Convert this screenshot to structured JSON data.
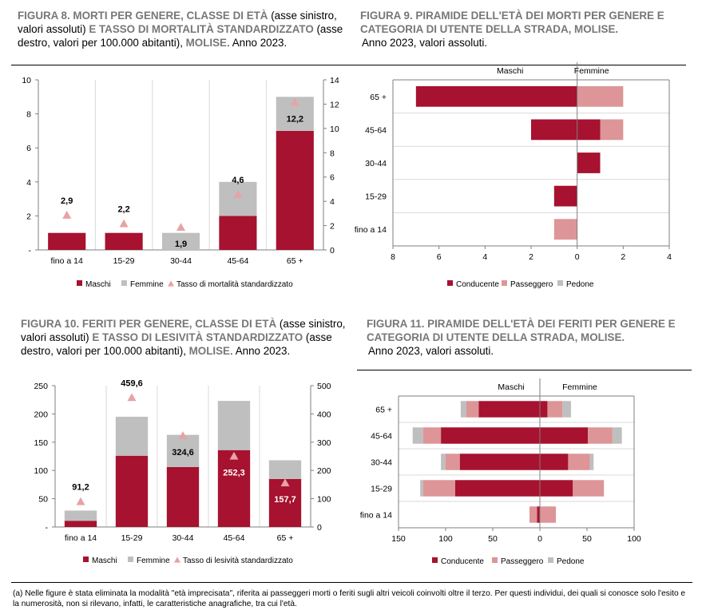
{
  "titles": {
    "f8": {
      "bold1": "FIGURA 8. MORTI PER GENERE, CLASSE DI ETÀ",
      "norm1": " (asse sinistro, valori assoluti)",
      "bold2": " E TASSO DI MORTALITÀ STANDARDIZZATO",
      "norm2": " (asse destro, valori per 100.000 abitanti), ",
      "bold3": "MOLISE",
      "norm3": ". Anno 2023."
    },
    "f9": {
      "bold": "FIGURA 9. PIRAMIDE DELL'ETÀ DEI MORTI PER GENERE E CATEGORIA DI UTENTE DELLA STRADA, MOLISE.",
      "sub": "Anno 2023, valori assoluti."
    },
    "f10": {
      "bold1": "FIGURA 10. FERITI PER GENERE, CLASSE DI ETÀ",
      "norm1": " (asse sinistro, valori assoluti)",
      "bold2": " E TASSO DI LESIVITÀ STANDARDIZZATO",
      "norm2": " (asse destro, valori per 100.000 abitanti), ",
      "bold3": "MOLISE",
      "norm3": ". Anno 2023."
    },
    "f11": {
      "bold": "FIGURA 11. PIRAMIDE DELL'ETÀ DEI FERITI PER GENERE E CATEGORIA DI UTENTE DELLA STRADA, MOLISE.",
      "sub": "Anno 2023, valori assoluti."
    }
  },
  "colors": {
    "maschi": "#a6122f",
    "femmine": "#bfbfbf",
    "tasso": "#e6a3a5",
    "conducente": "#a6122f",
    "passeggero": "#dd9597",
    "pedone": "#bfbfbf"
  },
  "chart_data": [
    {
      "id": "fig8",
      "type": "bar",
      "stacked": true,
      "categories": [
        "fino a 14",
        "15-29",
        "30-44",
        "45-64",
        "65 +"
      ],
      "series": [
        {
          "name": "Maschi",
          "values": [
            1,
            1,
            0,
            2,
            7
          ]
        },
        {
          "name": "Femmine",
          "values": [
            0,
            0,
            1,
            2,
            2
          ]
        }
      ],
      "line_series": {
        "name": "Tasso di mortalità standardizzato",
        "axis": "right",
        "marker": "triangle",
        "values": [
          2.9,
          2.2,
          1.9,
          4.6,
          12.2
        ],
        "labels": [
          "2,9",
          "2,2",
          "1,9",
          "4,6",
          "12,2"
        ]
      },
      "left_ticks": [
        "-",
        "2",
        "4",
        "6",
        "8",
        "10"
      ],
      "right_ticks": [
        "0",
        "2",
        "4",
        "6",
        "8",
        "10",
        "12",
        "14"
      ],
      "ylim": [
        0,
        10
      ],
      "y2lim": [
        0,
        14
      ],
      "legend": [
        "Maschi",
        "Femmine",
        "Tasso di mortalità standardizzato"
      ],
      "legend_position": "bottom"
    },
    {
      "id": "fig9",
      "type": "bar",
      "orientation": "horizontal",
      "stacked": true,
      "categories": [
        "65 +",
        "45-64",
        "30-44",
        "15-29",
        "fino a 14"
      ],
      "side_labels": [
        "Maschi",
        "Femmine"
      ],
      "maschi": [
        {
          "name": "Conducente",
          "values": [
            7,
            2,
            0,
            1,
            0
          ]
        },
        {
          "name": "Passeggero",
          "values": [
            0,
            0,
            0,
            0,
            1
          ]
        },
        {
          "name": "Pedone",
          "values": [
            0,
            0,
            0,
            0,
            0
          ]
        }
      ],
      "femmine": [
        {
          "name": "Conducente",
          "values": [
            0,
            1,
            1,
            0,
            0
          ]
        },
        {
          "name": "Passeggero",
          "values": [
            2,
            1,
            0,
            0,
            0
          ]
        },
        {
          "name": "Pedone",
          "values": [
            0,
            0,
            0,
            0,
            0
          ]
        }
      ],
      "x_ticks": [
        "8",
        "6",
        "4",
        "2",
        "0",
        "2",
        "4"
      ],
      "xlim": [
        -8,
        4
      ],
      "legend": [
        "Conducente",
        "Passeggero",
        "Pedone"
      ],
      "legend_position": "bottom"
    },
    {
      "id": "fig10",
      "type": "bar",
      "stacked": true,
      "categories": [
        "fino a 14",
        "15-29",
        "30-44",
        "45-64",
        "65 +"
      ],
      "series": [
        {
          "name": "Maschi",
          "values": [
            11,
            126,
            106,
            136,
            85
          ]
        },
        {
          "name": "Femmine",
          "values": [
            18,
            69,
            57,
            87,
            33
          ]
        }
      ],
      "line_series": {
        "name": "Tasso di lesività standardizzato",
        "axis": "right",
        "marker": "triangle",
        "values": [
          91.2,
          459.6,
          324.6,
          252.3,
          157.7
        ],
        "labels": [
          "91,2",
          "459,6",
          "324,6",
          "252,3",
          "157,7"
        ]
      },
      "left_ticks": [
        "-",
        "50",
        "100",
        "150",
        "200",
        "250"
      ],
      "right_ticks": [
        "0",
        "100",
        "200",
        "300",
        "400",
        "500"
      ],
      "ylim": [
        0,
        250
      ],
      "y2lim": [
        0,
        500
      ],
      "legend": [
        "Maschi",
        "Femmine",
        "Tasso di lesività standardizzato"
      ],
      "legend_position": "bottom"
    },
    {
      "id": "fig11",
      "type": "bar",
      "orientation": "horizontal",
      "stacked": true,
      "categories": [
        "65 +",
        "45-64",
        "30-44",
        "15-29",
        "fino a 14"
      ],
      "side_labels": [
        "Maschi",
        "Femmine"
      ],
      "maschi": [
        {
          "name": "Conducente",
          "values": [
            65,
            105,
            85,
            90,
            3
          ]
        },
        {
          "name": "Passeggero",
          "values": [
            13,
            19,
            15,
            34,
            8
          ]
        },
        {
          "name": "Pedone",
          "values": [
            6,
            11,
            5,
            3,
            0
          ]
        }
      ],
      "femmine": [
        {
          "name": "Conducente",
          "values": [
            8,
            51,
            30,
            35,
            0
          ]
        },
        {
          "name": "Passeggero",
          "values": [
            16,
            26,
            23,
            33,
            17
          ]
        },
        {
          "name": "Pedone",
          "values": [
            9,
            10,
            4,
            0,
            0
          ]
        }
      ],
      "x_ticks": [
        "150",
        "100",
        "50",
        "0",
        "50",
        "100"
      ],
      "xlim": [
        -150,
        100
      ],
      "legend": [
        "Conducente",
        "Passeggero",
        "Pedone"
      ],
      "legend_position": "bottom"
    }
  ],
  "footnote": "(a) Nelle figure è stata eliminata la modalità \"età imprecisata\", riferita ai passeggeri morti o feriti sugli altri veicoli coinvolti oltre il terzo. Per questi individui, dei quali si conosce solo l'esito e la numerosità, non si rilevano, infatti, le caratteristiche anagrafiche, tra cui l'età."
}
